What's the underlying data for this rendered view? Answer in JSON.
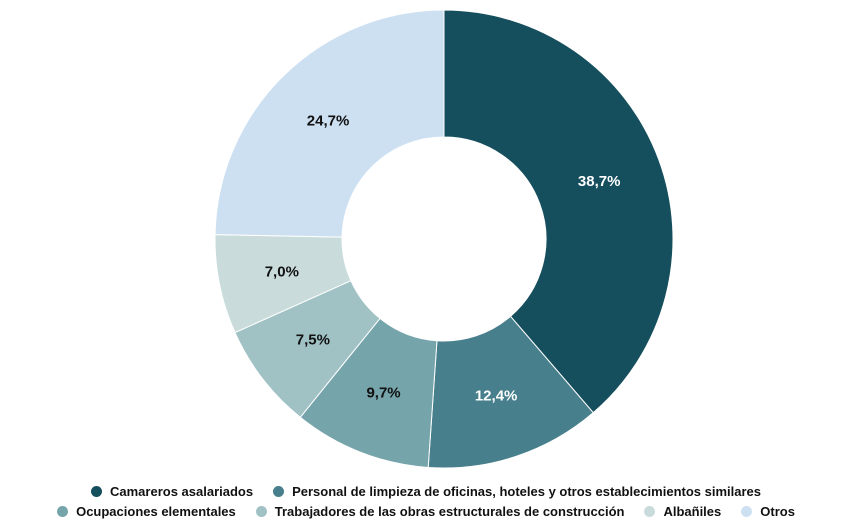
{
  "chart_data": {
    "type": "pie",
    "donut": true,
    "title": "",
    "legend_position": "bottom",
    "categories": [
      "Camareros asalariados",
      "Personal de limpieza de oficinas, hoteles y otros establecimientos similares",
      "Ocupaciones elementales",
      "Trabajadores de las obras estructurales de construcción",
      "Albañiles",
      "Otros"
    ],
    "values": [
      38.7,
      12.4,
      9.7,
      7.5,
      7.0,
      24.7
    ],
    "value_labels": [
      "38,7%",
      "12,4%",
      "9,7%",
      "7,5%",
      "7,0%",
      "24,7%"
    ],
    "colors": [
      "#154e5d",
      "#477f8c",
      "#76a4ab",
      "#a1c2c4",
      "#c9dcdb",
      "#cde0f2"
    ],
    "label_colors": [
      "#ffffff",
      "#ffffff",
      "#111111",
      "#111111",
      "#111111",
      "#111111"
    ]
  }
}
